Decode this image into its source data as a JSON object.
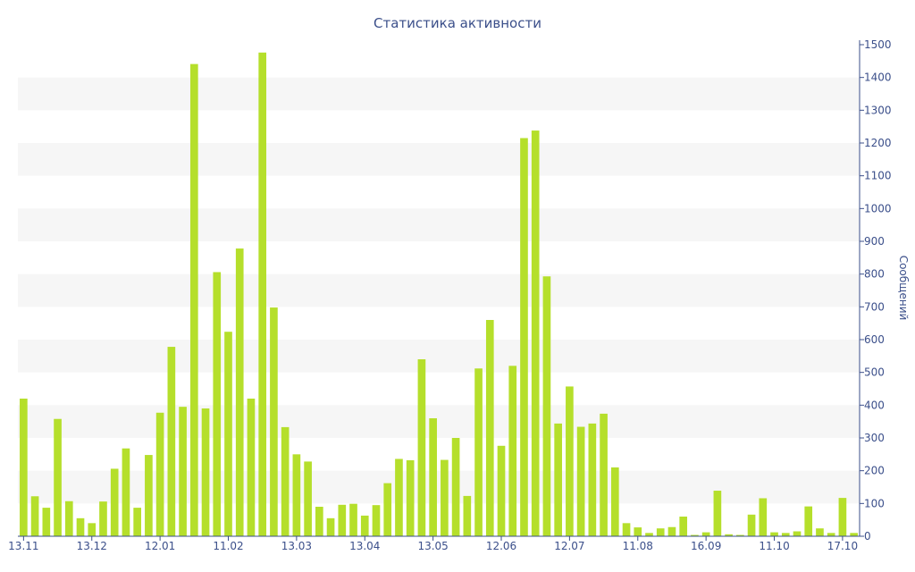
{
  "chart_data": {
    "type": "bar",
    "title": "Статистика активности",
    "xlabel": "",
    "ylabel": "Сообщений",
    "ylim": [
      0,
      1500
    ],
    "yticks": [
      0,
      100,
      200,
      300,
      400,
      500,
      600,
      700,
      800,
      900,
      1000,
      1100,
      1200,
      1300,
      1400,
      1500
    ],
    "xtick_labels": [
      {
        "index": 0,
        "label": "13.11"
      },
      {
        "index": 6,
        "label": "13.12"
      },
      {
        "index": 12,
        "label": "12.01"
      },
      {
        "index": 18,
        "label": "11.02"
      },
      {
        "index": 24,
        "label": "13.03"
      },
      {
        "index": 30,
        "label": "13.04"
      },
      {
        "index": 36,
        "label": "13.05"
      },
      {
        "index": 42,
        "label": "12.06"
      },
      {
        "index": 48,
        "label": "12.07"
      },
      {
        "index": 54,
        "label": "11.08"
      },
      {
        "index": 60,
        "label": "16.09"
      },
      {
        "index": 66,
        "label": "11.10"
      },
      {
        "index": 72,
        "label": "17.10"
      }
    ],
    "values": [
      420,
      122,
      87,
      358,
      107,
      55,
      40,
      106,
      206,
      268,
      87,
      248,
      377,
      578,
      395,
      1441,
      390,
      806,
      624,
      878,
      420,
      1476,
      698,
      333,
      250,
      228,
      90,
      55,
      96,
      99,
      63,
      95,
      162,
      236,
      232,
      540,
      360,
      233,
      300,
      123,
      512,
      660,
      276,
      520,
      1215,
      1238,
      793,
      344,
      457,
      334,
      344,
      374,
      210,
      40,
      27,
      10,
      24,
      28,
      60,
      4,
      12,
      139,
      6,
      4,
      66,
      116,
      12,
      10,
      15,
      91,
      24,
      10,
      117,
      10
    ],
    "colors": {
      "bar": "#b5df2b",
      "band": "#f6f6f6",
      "text": "#3b4f8a",
      "axis": "#3b4f8a"
    },
    "grid": "alternating-bands",
    "legend": "none"
  }
}
